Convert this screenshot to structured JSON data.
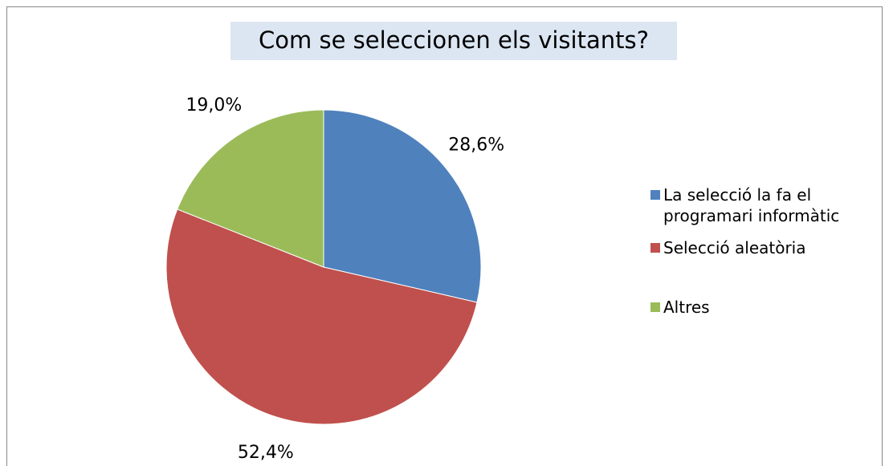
{
  "chart_data": {
    "type": "pie",
    "title": "Com se seleccionen els visitants?",
    "categories": [
      "La selecció la fa el programari informàtic",
      "Selecció aleatòria",
      "Altres"
    ],
    "values": [
      28.6,
      52.4,
      19.0
    ],
    "value_labels": [
      "28,6%",
      "52,4%",
      "19,0%"
    ],
    "colors": [
      "#4f81bd",
      "#c0504d",
      "#9bbb59"
    ],
    "legend": "right"
  }
}
